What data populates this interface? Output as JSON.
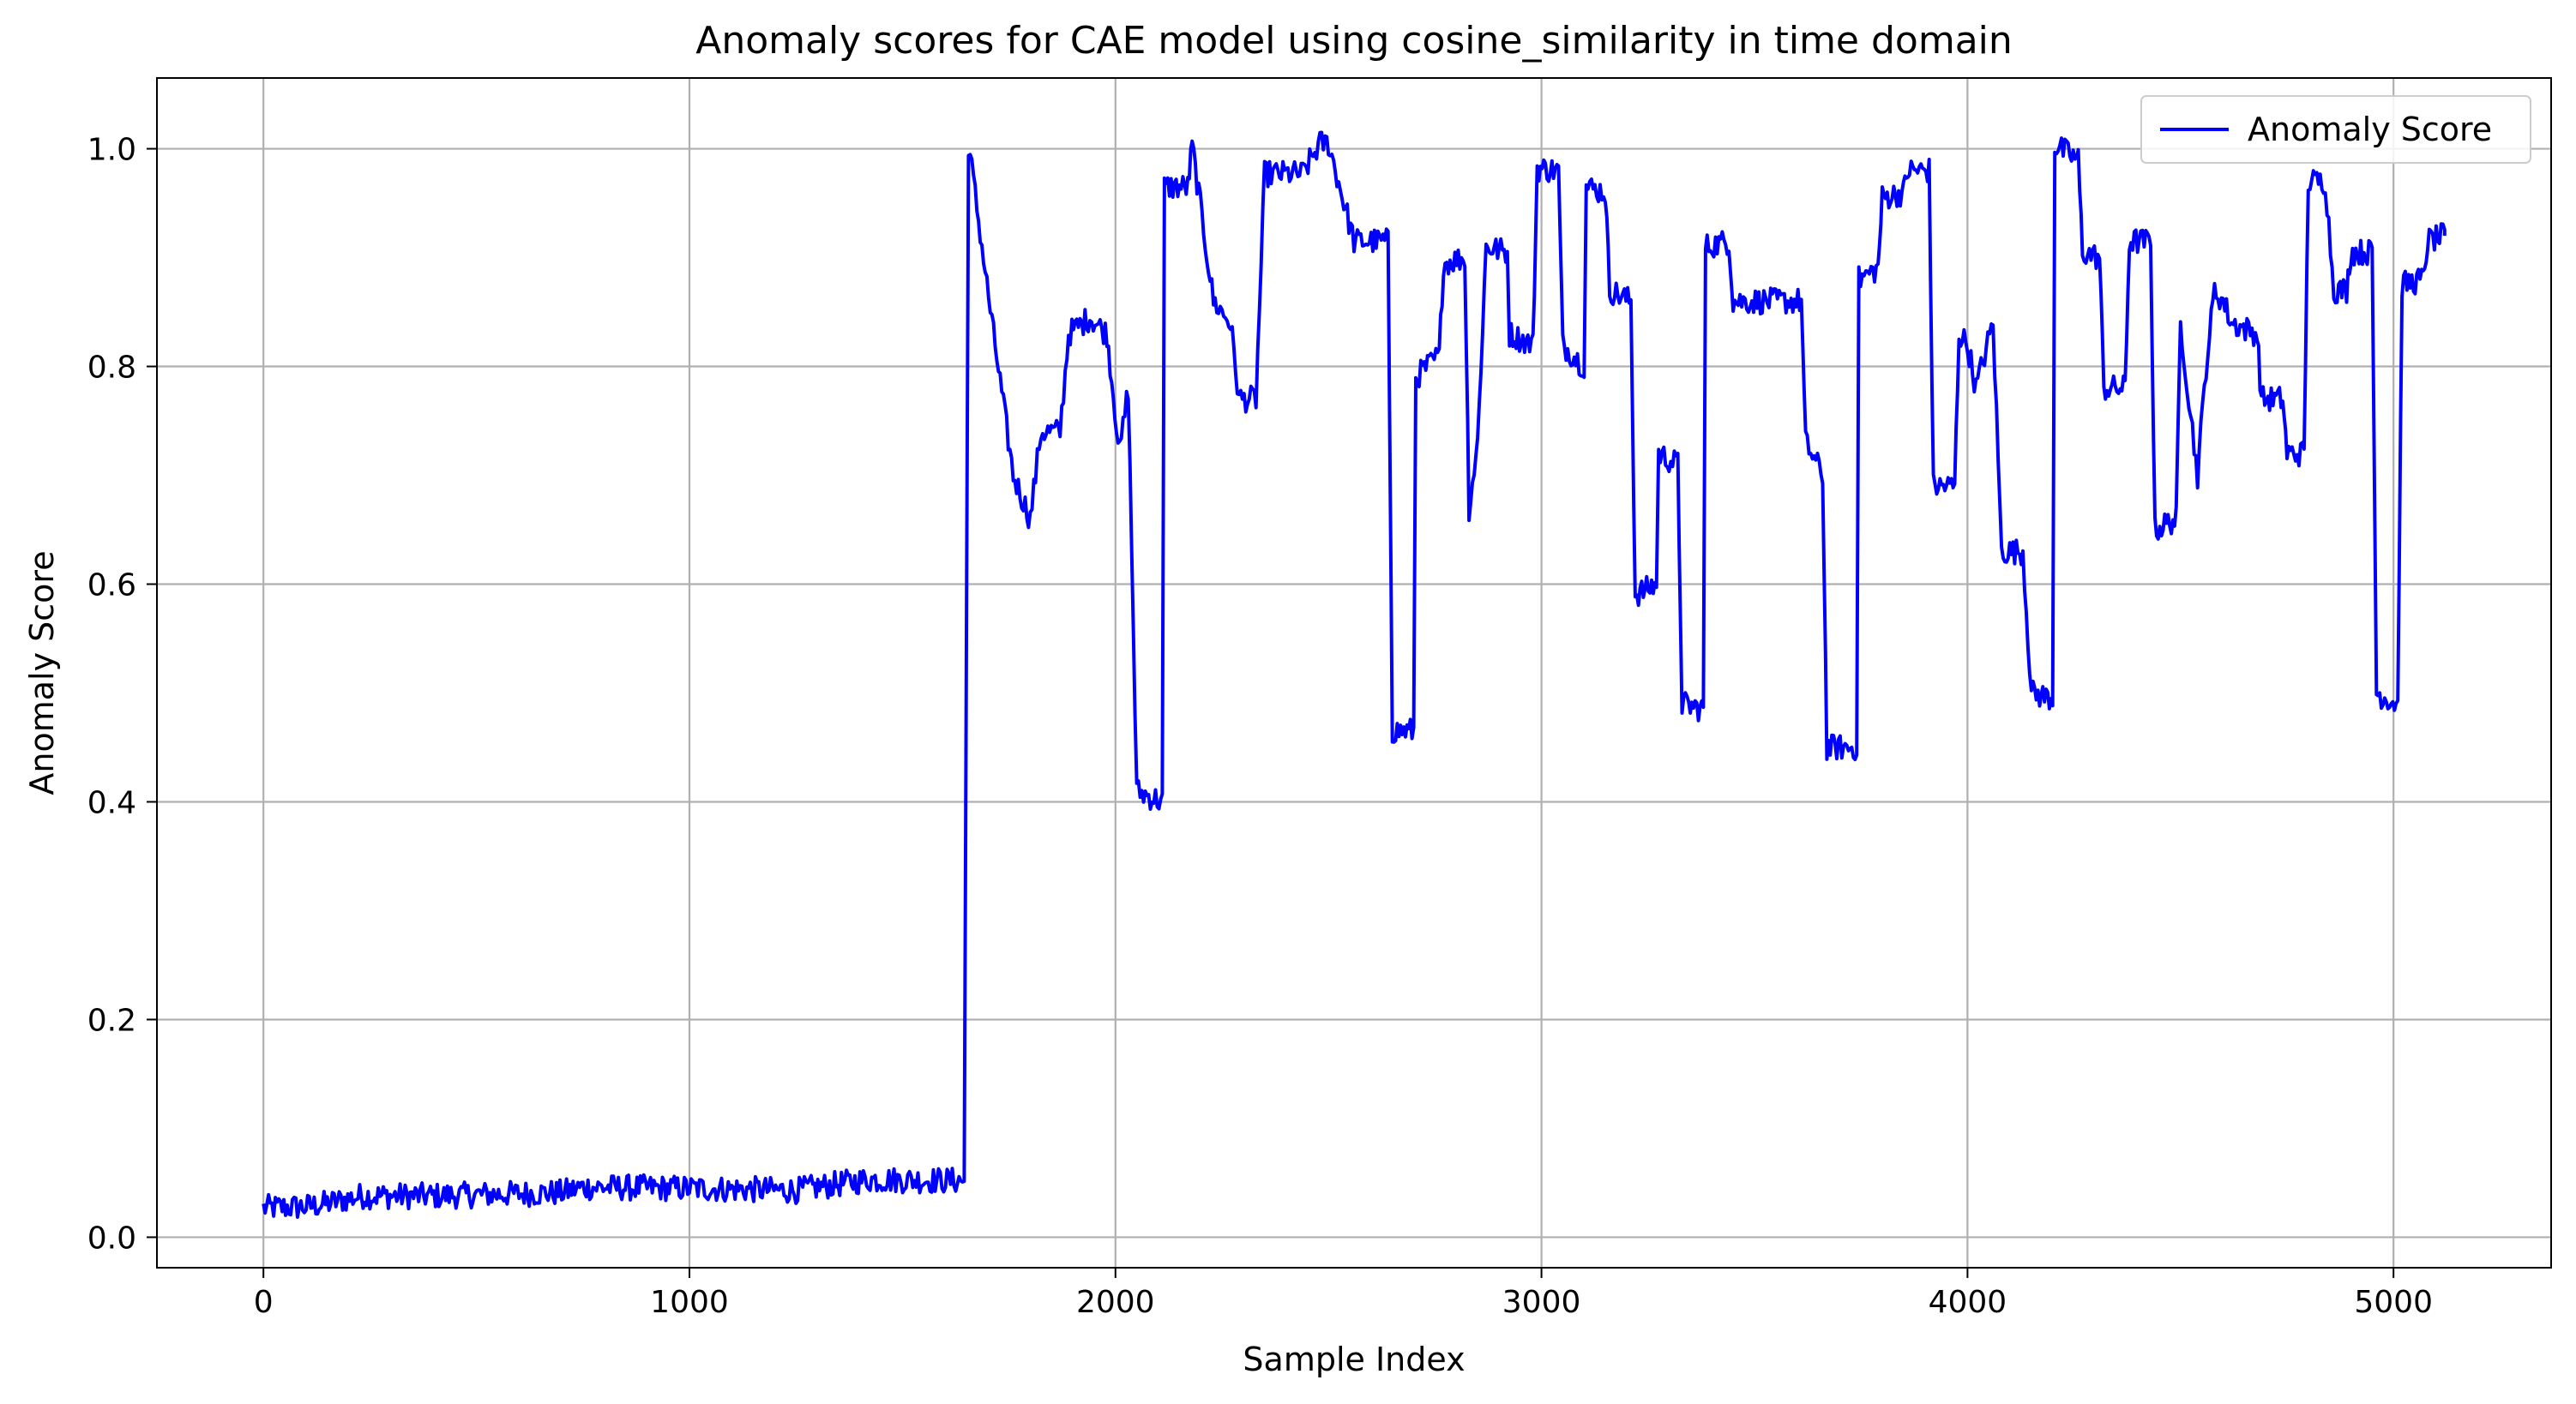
{
  "chart_data": {
    "type": "line",
    "title": "Anomaly scores for CAE model using cosine_similarity in time domain",
    "xlabel": "Sample Index",
    "ylabel": "Anomaly Score",
    "xlim": [
      -250,
      5370
    ],
    "ylim": [
      -0.028,
      1.065
    ],
    "xticks": [
      0,
      1000,
      2000,
      3000,
      4000,
      5000
    ],
    "xtick_labels": [
      "0",
      "1000",
      "2000",
      "3000",
      "4000",
      "5000"
    ],
    "yticks": [
      0.0,
      0.2,
      0.4,
      0.6,
      0.8,
      1.0
    ],
    "ytick_labels": [
      "0.0",
      "0.2",
      "0.4",
      "0.6",
      "0.8",
      "1.0"
    ],
    "grid": true,
    "legend": {
      "placement": "top-right",
      "entries": [
        "Anomaly Score"
      ]
    },
    "series": [
      {
        "name": "Anomaly Score",
        "color": "#0000ff",
        "noise": 0.012,
        "segments": [
          [
            0,
            0.027
          ],
          [
            100,
            0.028
          ],
          [
            150,
            0.031
          ],
          [
            230,
            0.038
          ],
          [
            400,
            0.038
          ],
          [
            700,
            0.041
          ],
          [
            750,
            0.046
          ],
          [
            1000,
            0.045
          ],
          [
            1250,
            0.043
          ],
          [
            1420,
            0.053
          ],
          [
            1645,
            0.052
          ],
          [
            1655,
            1.005
          ],
          [
            1710,
            0.84
          ],
          [
            1760,
            0.7
          ],
          [
            1800,
            0.66
          ],
          [
            1825,
            0.74
          ],
          [
            1870,
            0.74
          ],
          [
            1890,
            0.83
          ],
          [
            1940,
            0.845
          ],
          [
            1980,
            0.83
          ],
          [
            2010,
            0.72
          ],
          [
            2030,
            0.78
          ],
          [
            2050,
            0.41
          ],
          [
            2110,
            0.4
          ],
          [
            2115,
            0.965
          ],
          [
            2170,
            0.965
          ],
          [
            2180,
            1.003
          ],
          [
            2230,
            0.86
          ],
          [
            2270,
            0.84
          ],
          [
            2290,
            0.77
          ],
          [
            2330,
            0.77
          ],
          [
            2350,
            0.977
          ],
          [
            2440,
            0.977
          ],
          [
            2480,
            1.005
          ],
          [
            2500,
            1.005
          ],
          [
            2560,
            0.915
          ],
          [
            2640,
            0.915
          ],
          [
            2650,
            0.465
          ],
          [
            2700,
            0.465
          ],
          [
            2705,
            0.79
          ],
          [
            2760,
            0.81
          ],
          [
            2770,
            0.895
          ],
          [
            2820,
            0.9
          ],
          [
            2830,
            0.67
          ],
          [
            2850,
            0.73
          ],
          [
            2870,
            0.91
          ],
          [
            2920,
            0.905
          ],
          [
            2925,
            0.83
          ],
          [
            2980,
            0.82
          ],
          [
            2990,
            0.982
          ],
          [
            3040,
            0.98
          ],
          [
            3050,
            0.82
          ],
          [
            3100,
            0.8
          ],
          [
            3105,
            0.965
          ],
          [
            3150,
            0.96
          ],
          [
            3160,
            0.87
          ],
          [
            3210,
            0.86
          ],
          [
            3220,
            0.59
          ],
          [
            3270,
            0.6
          ],
          [
            3275,
            0.72
          ],
          [
            3320,
            0.71
          ],
          [
            3330,
            0.49
          ],
          [
            3380,
            0.485
          ],
          [
            3385,
            0.91
          ],
          [
            3440,
            0.915
          ],
          [
            3450,
            0.86
          ],
          [
            3610,
            0.86
          ],
          [
            3620,
            0.73
          ],
          [
            3660,
            0.7
          ],
          [
            3670,
            0.45
          ],
          [
            3740,
            0.45
          ],
          [
            3745,
            0.88
          ],
          [
            3790,
            0.89
          ],
          [
            3800,
            0.955
          ],
          [
            3850,
            0.96
          ],
          [
            3860,
            0.98
          ],
          [
            3910,
            0.98
          ],
          [
            3920,
            0.69
          ],
          [
            3970,
            0.69
          ],
          [
            3980,
            0.83
          ],
          [
            4000,
            0.82
          ],
          [
            4020,
            0.78
          ],
          [
            4060,
            0.84
          ],
          [
            4080,
            0.63
          ],
          [
            4130,
            0.63
          ],
          [
            4150,
            0.5
          ],
          [
            4200,
            0.495
          ],
          [
            4205,
            1.003
          ],
          [
            4260,
            0.99
          ],
          [
            4270,
            0.905
          ],
          [
            4310,
            0.9
          ],
          [
            4320,
            0.78
          ],
          [
            4370,
            0.78
          ],
          [
            4380,
            0.915
          ],
          [
            4430,
            0.915
          ],
          [
            4440,
            0.65
          ],
          [
            4490,
            0.66
          ],
          [
            4500,
            0.84
          ],
          [
            4540,
            0.7
          ],
          [
            4560,
            0.8
          ],
          [
            4580,
            0.87
          ],
          [
            4600,
            0.86
          ],
          [
            4620,
            0.84
          ],
          [
            4680,
            0.83
          ],
          [
            4690,
            0.77
          ],
          [
            4740,
            0.77
          ],
          [
            4750,
            0.72
          ],
          [
            4790,
            0.72
          ],
          [
            4800,
            0.97
          ],
          [
            4840,
            0.97
          ],
          [
            4860,
            0.87
          ],
          [
            4890,
            0.87
          ],
          [
            4900,
            0.905
          ],
          [
            4950,
            0.905
          ],
          [
            4960,
            0.5
          ],
          [
            5010,
            0.49
          ],
          [
            5020,
            0.875
          ],
          [
            5070,
            0.88
          ],
          [
            5080,
            0.915
          ],
          [
            5120,
            0.92
          ]
        ]
      }
    ]
  }
}
